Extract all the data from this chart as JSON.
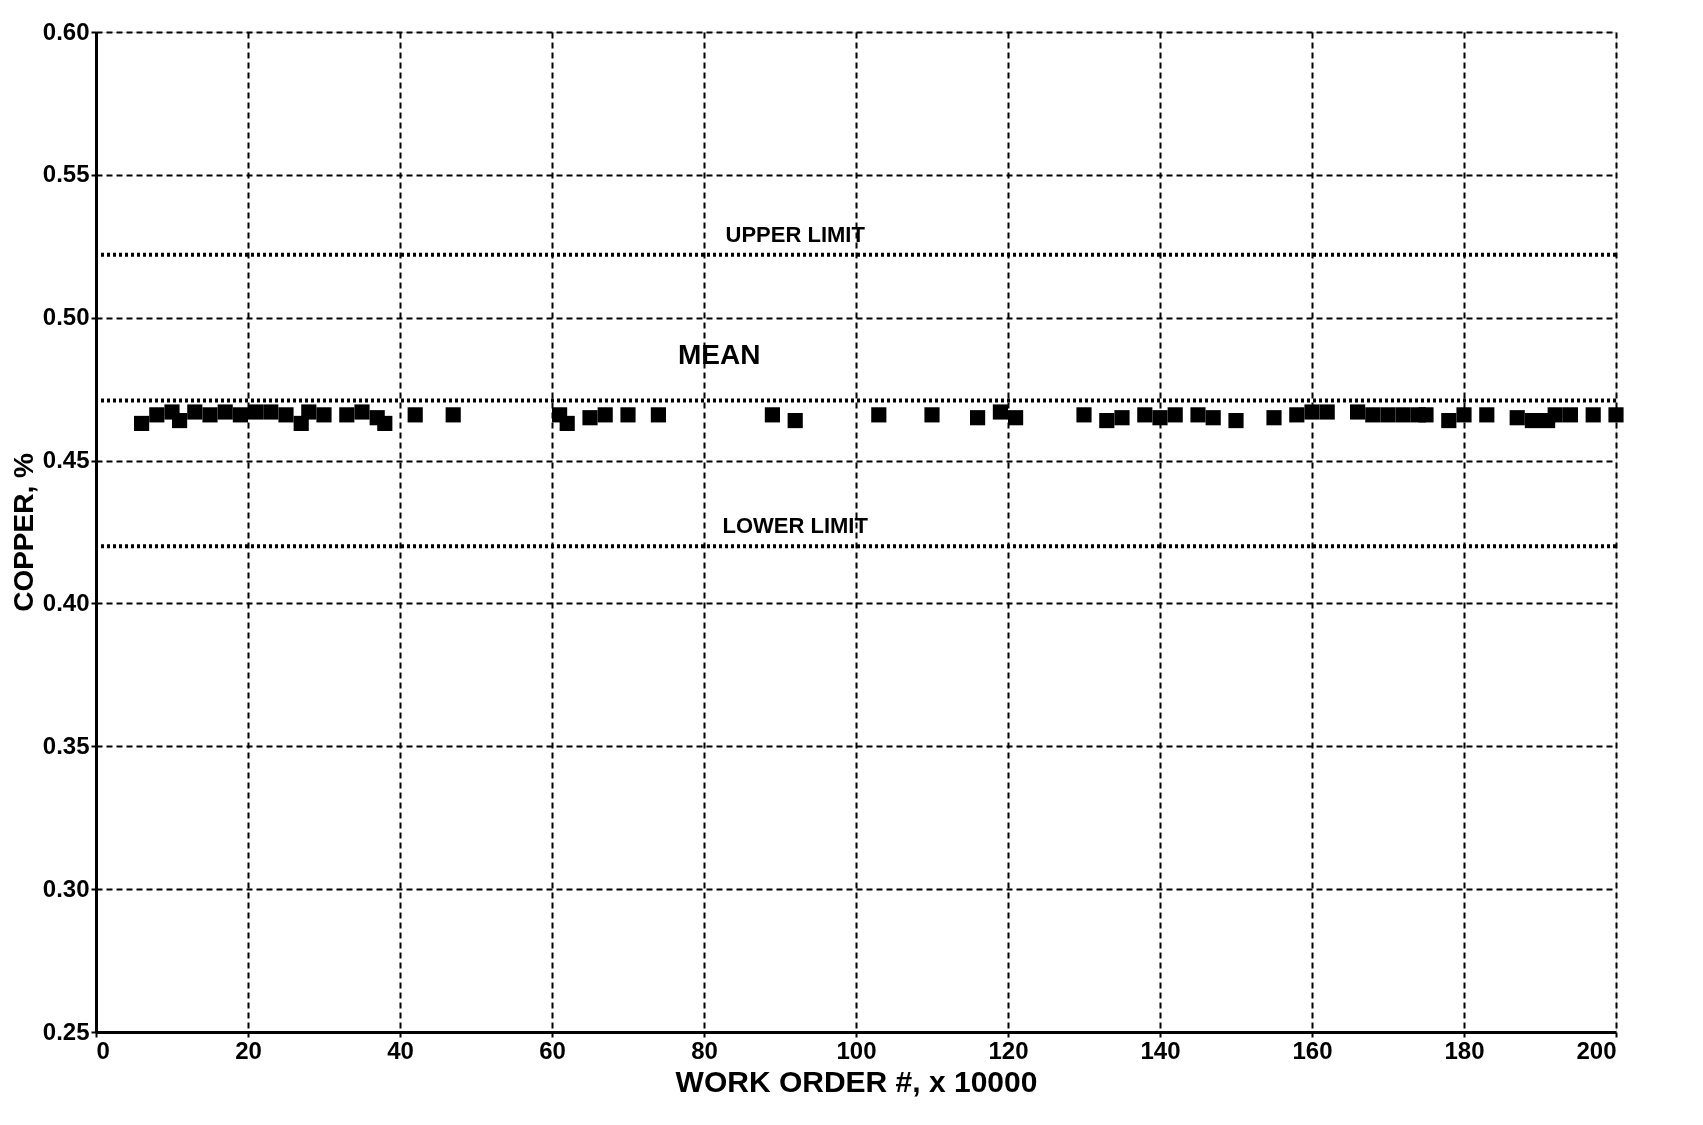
{
  "chart_data": {
    "type": "scatter",
    "xlabel": "WORK ORDER #, x 10000",
    "ylabel": "COPPER, %",
    "series": [
      {
        "color": "#000000",
        "marker": "square",
        "x": [
          6,
          8,
          10,
          11,
          13,
          15,
          17,
          19,
          21,
          23,
          25,
          27,
          28,
          30,
          33,
          35,
          37,
          38,
          42,
          47,
          61,
          62,
          65,
          67,
          70,
          74,
          89,
          92,
          103,
          110,
          116,
          119,
          121,
          130,
          133,
          135,
          138,
          140,
          142,
          145,
          147,
          150,
          155,
          158,
          160,
          162,
          166,
          168,
          170,
          172,
          174,
          175,
          178,
          180,
          183,
          187,
          189,
          191,
          192,
          194,
          197,
          200
        ],
        "values": [
          0.463,
          0.466,
          0.467,
          0.464,
          0.467,
          0.466,
          0.467,
          0.466,
          0.467,
          0.467,
          0.466,
          0.463,
          0.467,
          0.466,
          0.466,
          0.467,
          0.465,
          0.463,
          0.466,
          0.466,
          0.466,
          0.463,
          0.465,
          0.466,
          0.466,
          0.466,
          0.466,
          0.464,
          0.466,
          0.466,
          0.465,
          0.467,
          0.465,
          0.466,
          0.464,
          0.465,
          0.466,
          0.465,
          0.466,
          0.466,
          0.465,
          0.464,
          0.465,
          0.466,
          0.467,
          0.467,
          0.467,
          0.466,
          0.466,
          0.466,
          0.466,
          0.466,
          0.464,
          0.466,
          0.466,
          0.465,
          0.464,
          0.464,
          0.466,
          0.466,
          0.466,
          0.466
        ]
      }
    ],
    "ref_lines": [
      {
        "axis": "y",
        "value": 0.522,
        "label": "UPPER LIMIT",
        "line_style": "dotted"
      },
      {
        "axis": "y",
        "value": 0.471,
        "label": "MEAN",
        "line_style": "dotted"
      },
      {
        "axis": "y",
        "value": 0.42,
        "label": "LOWER LIMIT",
        "line_style": "dotted"
      }
    ],
    "xlim": [
      0,
      200
    ],
    "xticks": [
      0,
      20,
      40,
      60,
      80,
      100,
      120,
      140,
      160,
      180,
      200
    ],
    "ylim": [
      0.25,
      0.6
    ],
    "yticks": [
      {
        "value": 0.25,
        "label": "0.25"
      },
      {
        "value": 0.3,
        "label": "0.30"
      },
      {
        "value": 0.35,
        "label": "0.35"
      },
      {
        "value": 0.4,
        "label": "0.40"
      },
      {
        "value": 0.45,
        "label": "0.45"
      },
      {
        "value": 0.5,
        "label": "0.50"
      },
      {
        "value": 0.55,
        "label": "0.55"
      },
      {
        "value": 0.6,
        "label": "0.60"
      }
    ],
    "grid": true
  }
}
